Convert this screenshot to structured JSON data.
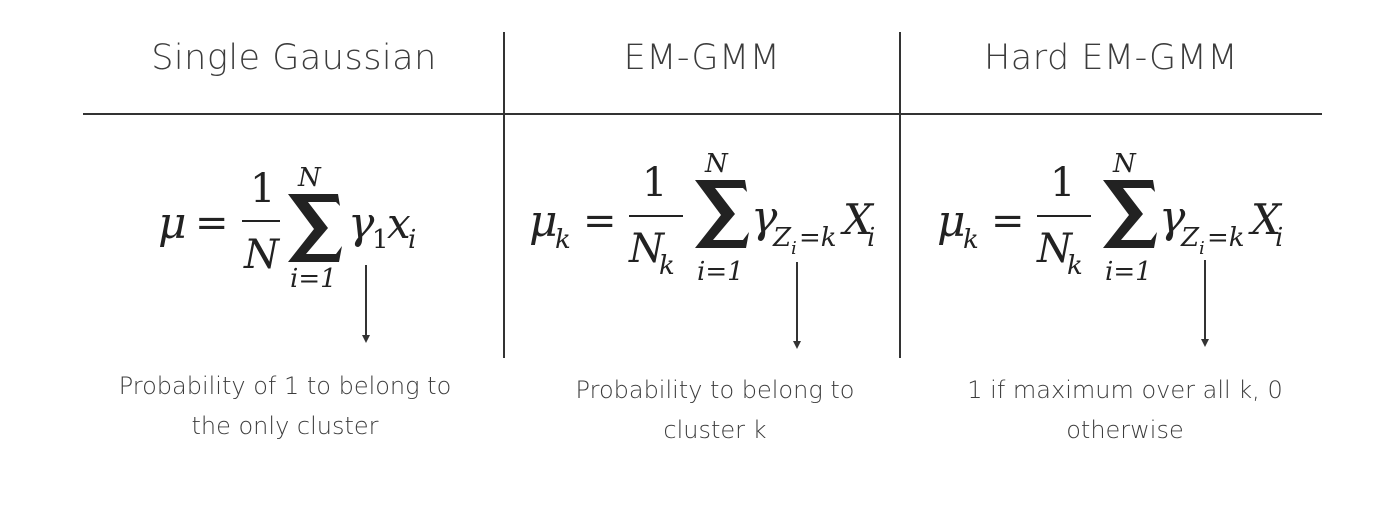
{
  "columns": [
    {
      "title": "Single Gaussian",
      "formula": {
        "lhs": "μ",
        "equals": "=",
        "numerator": "1",
        "denominator": "N",
        "denominator_sub": "",
        "sum_upper": "N",
        "sum_lower": "i=1",
        "gamma": "γ",
        "gamma_sub": "1",
        "var": "x",
        "var_sub": "i"
      },
      "caption_line1": "Probability of 1 to belong to",
      "caption_line2": "the only cluster"
    },
    {
      "title": "EM-GMM",
      "formula": {
        "lhs": "μ",
        "lhs_sub": "k",
        "equals": "=",
        "numerator": "1",
        "denominator": "N",
        "denominator_sub": "k",
        "sum_upper": "N",
        "sum_lower": "i=1",
        "gamma": "γ",
        "gamma_sub": "Z",
        "gamma_sub_sub": "i",
        "gamma_sub_rest": "=k",
        "var": "X",
        "var_sub": "i"
      },
      "caption_line1": "Probability to belong to",
      "caption_line2": "cluster k"
    },
    {
      "title": "Hard EM-GMM",
      "formula": {
        "lhs": "μ",
        "lhs_sub": "k",
        "equals": "=",
        "numerator": "1",
        "denominator": "N",
        "denominator_sub": "k",
        "sum_upper": "N",
        "sum_lower": "i=1",
        "gamma": "γ",
        "gamma_sub": "Z",
        "gamma_sub_sub": "i",
        "gamma_sub_rest": "=k",
        "var": "X",
        "var_sub": "i"
      },
      "caption_line1": "1 if maximum over all k, 0",
      "caption_line2": "otherwise"
    }
  ]
}
